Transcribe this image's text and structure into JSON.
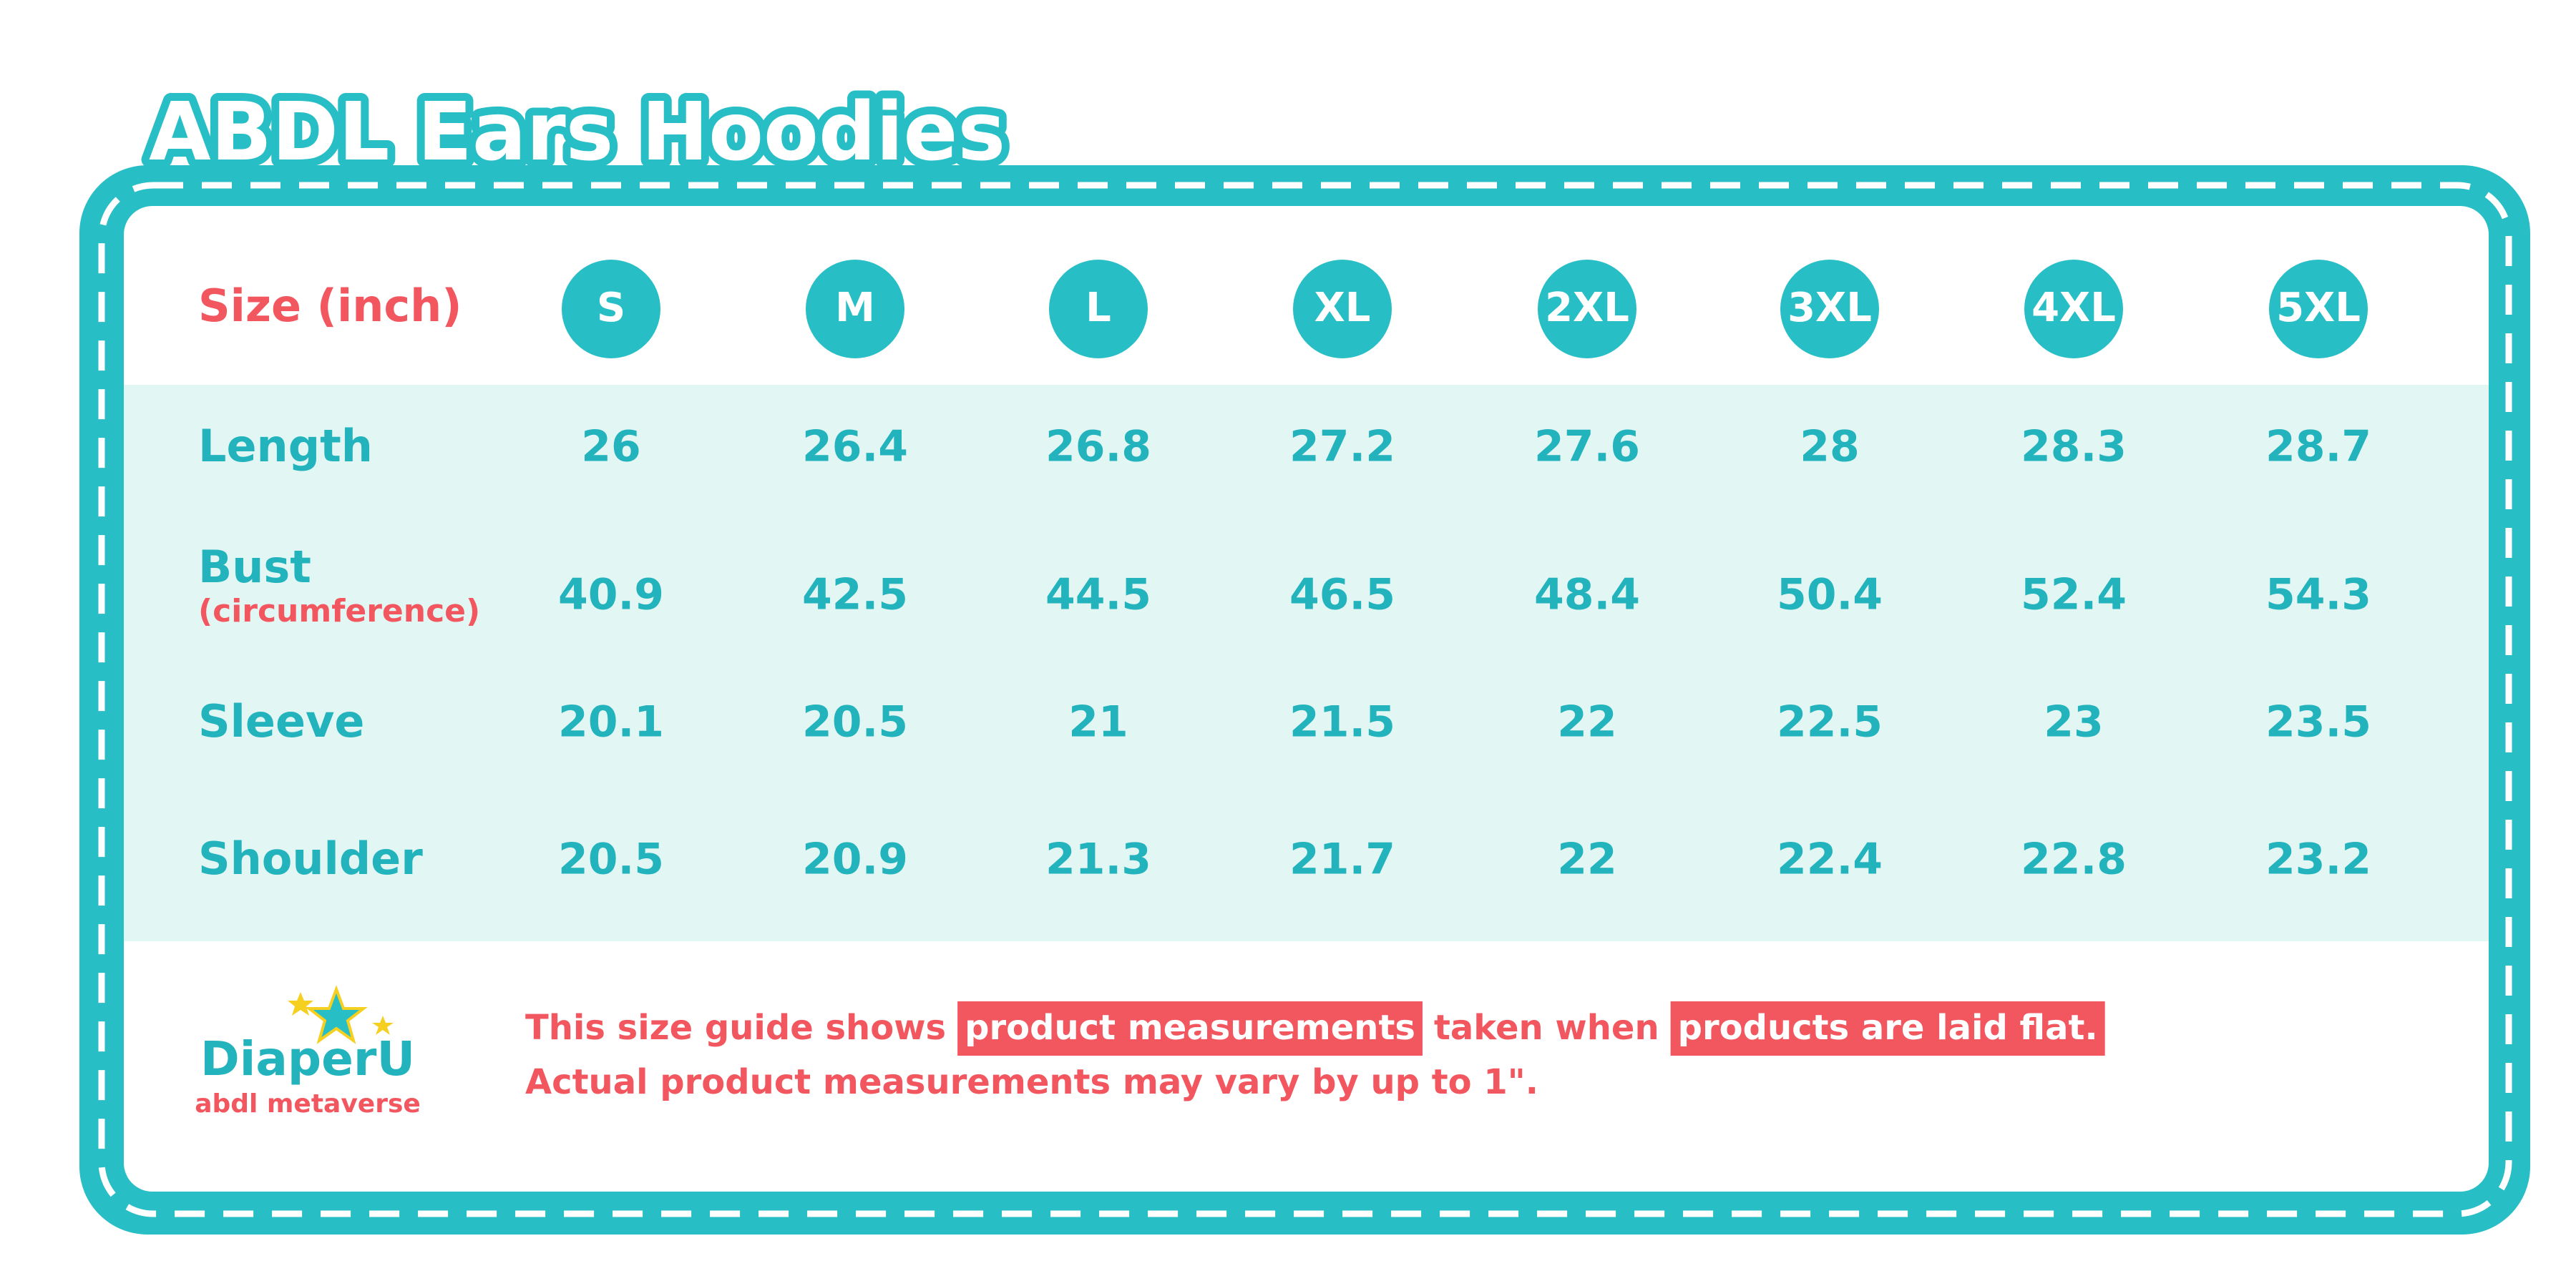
{
  "title": "ABDL Ears Hoodies",
  "table": {
    "corner": "Size (inch)",
    "sizes": [
      "S",
      "M",
      "L",
      "XL",
      "2XL",
      "3XL",
      "4XL",
      "5XL"
    ],
    "rows": [
      {
        "label": "Length",
        "values": [
          26,
          26.4,
          26.8,
          27.2,
          27.6,
          28,
          28.3,
          28.7
        ]
      },
      {
        "label": "Bust",
        "sublabel": "(circumference)",
        "values": [
          40.9,
          42.5,
          44.5,
          46.5,
          48.4,
          50.4,
          52.4,
          54.3
        ]
      },
      {
        "label": "Sleeve",
        "values": [
          20.1,
          20.5,
          21,
          21.5,
          22,
          22.5,
          23,
          23.5
        ]
      },
      {
        "label": "Shoulder",
        "values": [
          20.5,
          20.9,
          21.3,
          21.7,
          22,
          22.4,
          22.8,
          23.2
        ]
      }
    ]
  },
  "note": {
    "line1": [
      {
        "text": "This size guide shows",
        "highlight": false
      },
      {
        "text": "product measurements",
        "highlight": true
      },
      {
        "text": "taken when",
        "highlight": false
      },
      {
        "text": "products are laid flat.",
        "highlight": true
      }
    ],
    "line2": "Actual product measurements may vary by up to 1\"."
  },
  "logo": {
    "brand": "DiaperU",
    "tagline": "abdl metaverse"
  }
}
